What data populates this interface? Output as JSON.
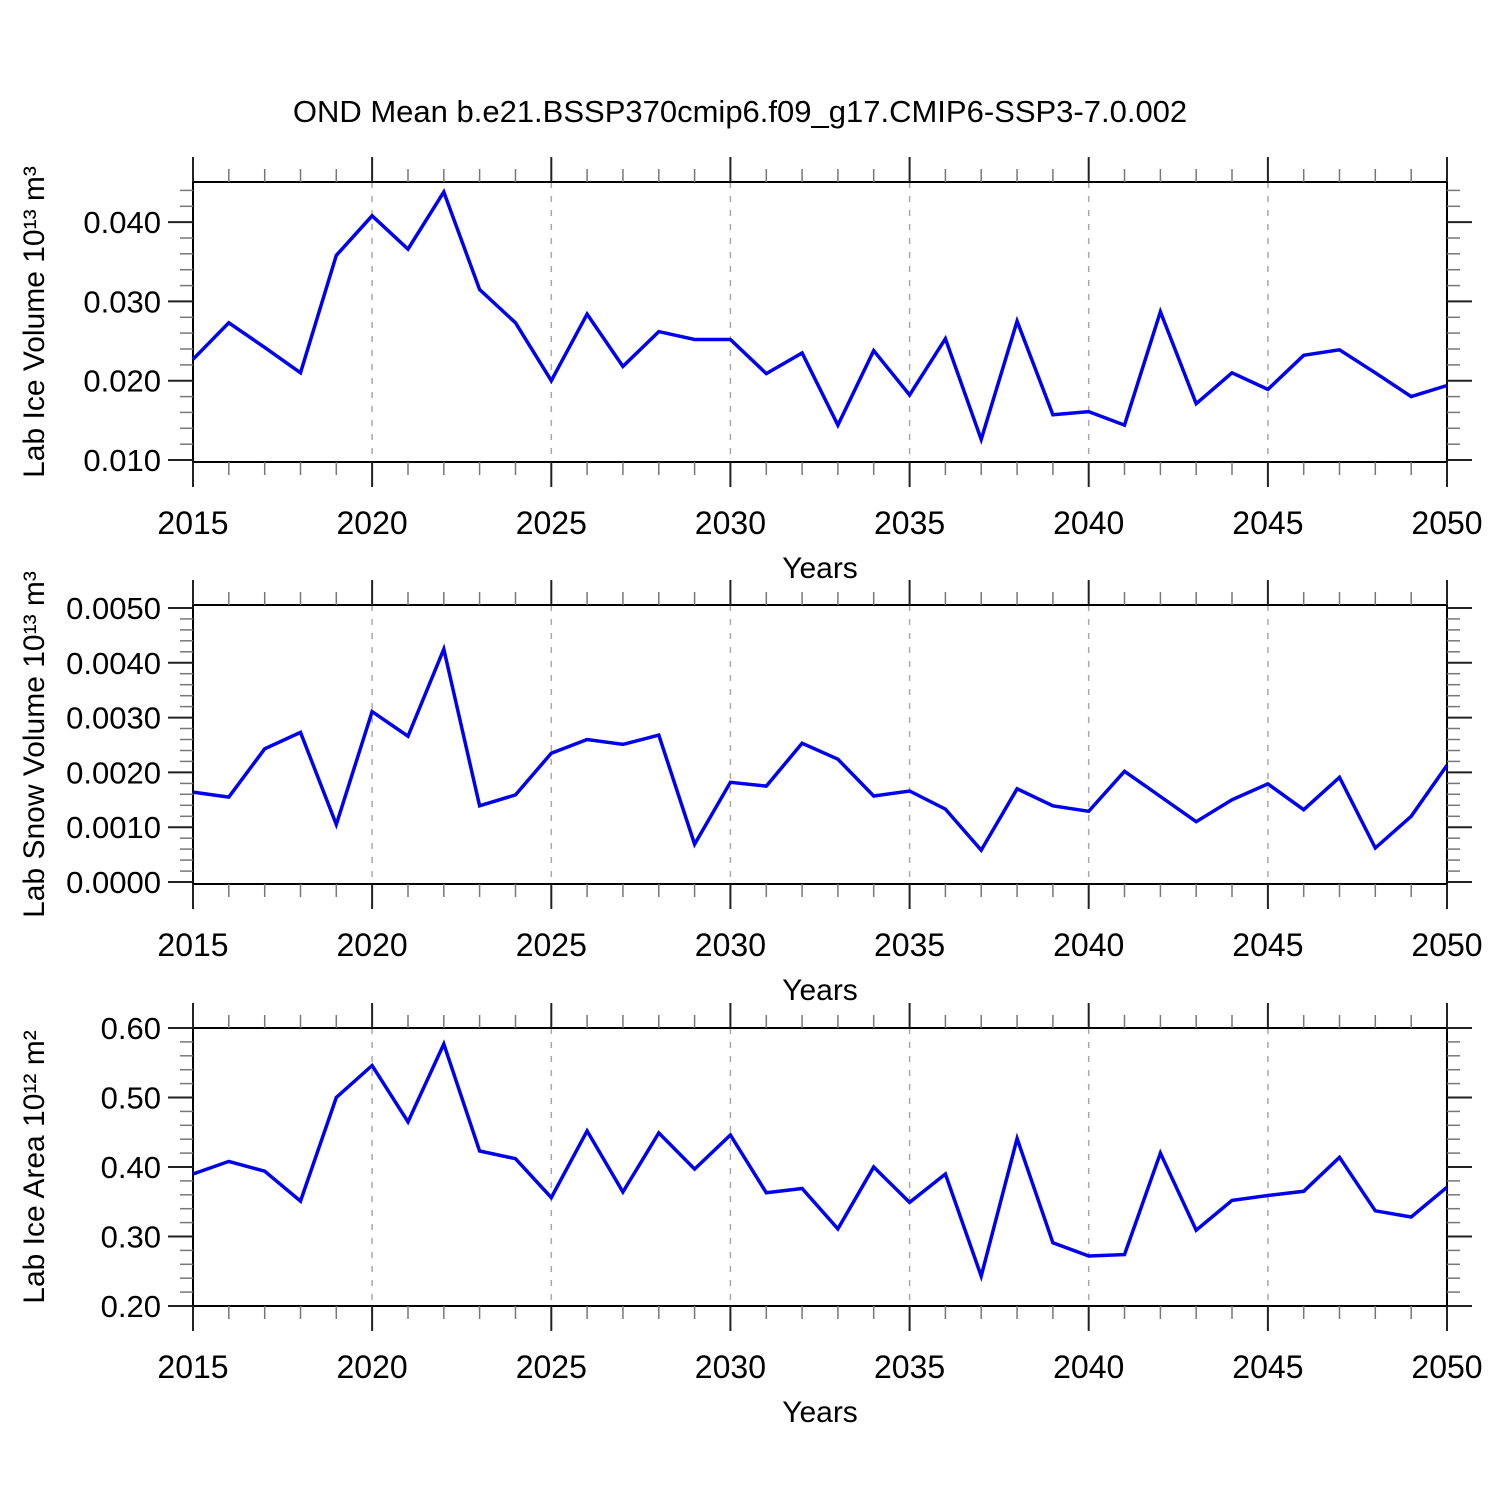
{
  "title": "OND Mean b.e21.BSSP370cmip6.f09_g17.CMIP6-SSP3-7.0.002",
  "chart_data": [
    {
      "type": "line",
      "id": "lab-ice-volume",
      "ylabel": "Lab Ice Volume 10¹³ m³",
      "xlabel": "Years",
      "line_color": "#0000f0",
      "grid_color": "#aaaaaa",
      "xlim": [
        2015,
        2050
      ],
      "ylim": [
        0.00975,
        0.04506
      ],
      "yticks": [
        0.01,
        0.02,
        0.03,
        0.04
      ],
      "ytick_labels": [
        "0.010",
        "0.020",
        "0.030",
        "0.040"
      ],
      "yminor_step": 0.002,
      "xticks": [
        2015,
        2020,
        2025,
        2030,
        2035,
        2040,
        2045,
        2050
      ],
      "xminor_step": 1,
      "grid_years": [
        2020,
        2025,
        2030,
        2035,
        2040,
        2045
      ],
      "x": [
        2015,
        2016,
        2017,
        2018,
        2019,
        2020,
        2021,
        2022,
        2023,
        2024,
        2025,
        2026,
        2027,
        2028,
        2029,
        2030,
        2031,
        2032,
        2033,
        2034,
        2035,
        2036,
        2037,
        2038,
        2039,
        2040,
        2041,
        2042,
        2043,
        2044,
        2045,
        2046,
        2047,
        2048,
        2049,
        2050
      ],
      "values": [
        0.0227,
        0.0273,
        0.0242,
        0.021,
        0.0358,
        0.0408,
        0.0366,
        0.0438,
        0.0315,
        0.0273,
        0.02,
        0.0284,
        0.0218,
        0.0262,
        0.0252,
        0.0252,
        0.0209,
        0.0235,
        0.0144,
        0.0238,
        0.0182,
        0.0253,
        0.0126,
        0.0275,
        0.0157,
        0.0161,
        0.0144,
        0.0287,
        0.0171,
        0.021,
        0.0189,
        0.0232,
        0.0239,
        0.021,
        0.018,
        0.0194
      ]
    },
    {
      "type": "line",
      "id": "lab-snow-volume",
      "ylabel": "Lab Snow Volume 10¹³ m³",
      "xlabel": "Years",
      "line_color": "#0000f0",
      "grid_color": "#aaaaaa",
      "xlim": [
        2015,
        2050
      ],
      "ylim": [
        -3.6e-05,
        0.005054
      ],
      "yticks": [
        0.0,
        0.001,
        0.002,
        0.003,
        0.004,
        0.005
      ],
      "ytick_labels": [
        "0.0000",
        "0.0010",
        "0.0020",
        "0.0030",
        "0.0040",
        "0.0050"
      ],
      "yminor_step": 0.0002,
      "xticks": [
        2015,
        2020,
        2025,
        2030,
        2035,
        2040,
        2045,
        2050
      ],
      "xminor_step": 1,
      "grid_years": [
        2020,
        2025,
        2030,
        2035,
        2040,
        2045
      ],
      "x": [
        2015,
        2016,
        2017,
        2018,
        2019,
        2020,
        2021,
        2022,
        2023,
        2024,
        2025,
        2026,
        2027,
        2028,
        2029,
        2030,
        2031,
        2032,
        2033,
        2034,
        2035,
        2036,
        2037,
        2038,
        2039,
        2040,
        2041,
        2042,
        2043,
        2044,
        2045,
        2046,
        2047,
        2048,
        2049,
        2050
      ],
      "values": [
        0.00164,
        0.00155,
        0.00243,
        0.00273,
        0.00105,
        0.00311,
        0.00266,
        0.00425,
        0.00139,
        0.00159,
        0.00235,
        0.0026,
        0.00251,
        0.00268,
        0.00069,
        0.00182,
        0.00175,
        0.00253,
        0.00224,
        0.00157,
        0.00166,
        0.00133,
        0.00058,
        0.0017,
        0.00139,
        0.00129,
        0.00202,
        0.00156,
        0.0011,
        0.0015,
        0.00179,
        0.00132,
        0.00191,
        0.00062,
        0.0012,
        0.00213
      ]
    },
    {
      "type": "line",
      "id": "lab-ice-area",
      "ylabel": "Lab Ice Area 10¹² m²",
      "xlabel": "Years",
      "line_color": "#0000f0",
      "grid_color": "#aaaaaa",
      "xlim": [
        2015,
        2050
      ],
      "ylim": [
        0.2,
        0.6
      ],
      "yticks": [
        0.2,
        0.3,
        0.4,
        0.5,
        0.6
      ],
      "ytick_labels": [
        "0.20",
        "0.30",
        "0.40",
        "0.50",
        "0.60"
      ],
      "yminor_step": 0.02,
      "xticks": [
        2015,
        2020,
        2025,
        2030,
        2035,
        2040,
        2045,
        2050
      ],
      "xminor_step": 1,
      "grid_years": [
        2020,
        2025,
        2030,
        2035,
        2040,
        2045
      ],
      "x": [
        2015,
        2016,
        2017,
        2018,
        2019,
        2020,
        2021,
        2022,
        2023,
        2024,
        2025,
        2026,
        2027,
        2028,
        2029,
        2030,
        2031,
        2032,
        2033,
        2034,
        2035,
        2036,
        2037,
        2038,
        2039,
        2040,
        2041,
        2042,
        2043,
        2044,
        2045,
        2046,
        2047,
        2048,
        2049,
        2050
      ],
      "values": [
        0.39,
        0.408,
        0.394,
        0.351,
        0.5,
        0.546,
        0.465,
        0.577,
        0.423,
        0.412,
        0.356,
        0.452,
        0.364,
        0.449,
        0.397,
        0.446,
        0.363,
        0.369,
        0.311,
        0.4,
        0.349,
        0.39,
        0.243,
        0.441,
        0.291,
        0.272,
        0.274,
        0.42,
        0.309,
        0.352,
        0.359,
        0.365,
        0.414,
        0.337,
        0.328,
        0.371
      ]
    }
  ]
}
